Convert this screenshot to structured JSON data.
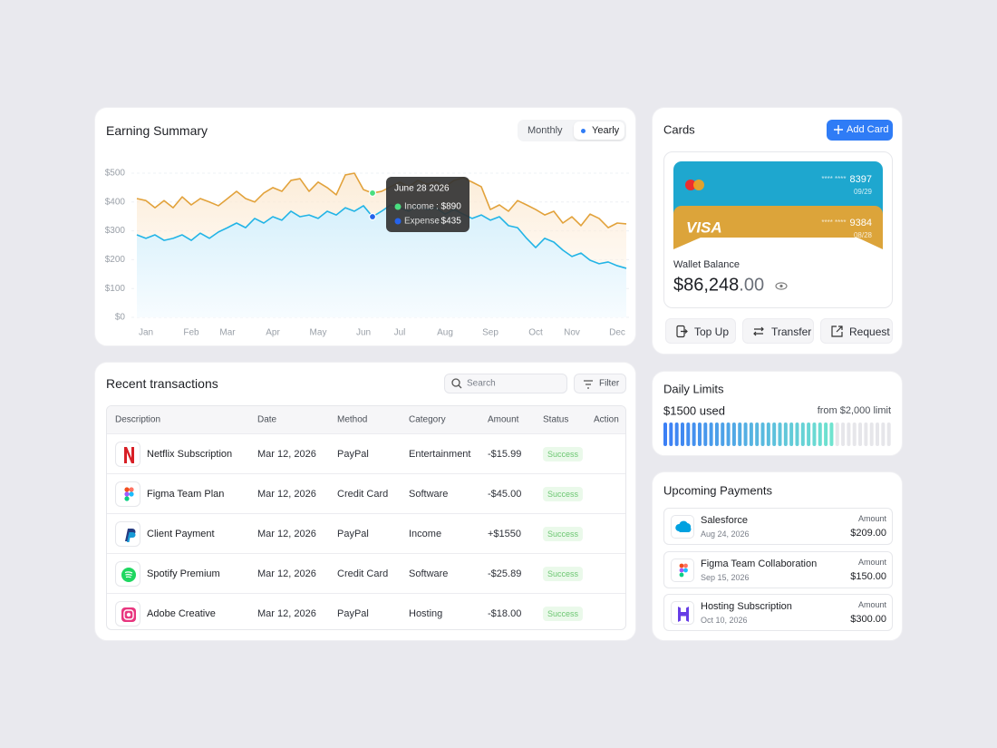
{
  "chart_data": {
    "type": "line",
    "title": "Earning Summary",
    "categories": [
      null,
      "Jan",
      null,
      null,
      null,
      null,
      "Feb",
      null,
      null,
      null,
      "Mar",
      null,
      null,
      null,
      null,
      "Apr",
      null,
      null,
      null,
      null,
      "May",
      null,
      null,
      null,
      null,
      "Jun",
      null,
      null,
      null,
      "Jul",
      null,
      null,
      null,
      null,
      "Aug",
      null,
      null,
      null,
      null,
      "Sep",
      null,
      null,
      null,
      null,
      "Oct",
      null,
      null,
      null,
      "Nov",
      null,
      null,
      null,
      null,
      "Dec",
      null
    ],
    "series": [
      {
        "name": "Income",
        "color": "#e2a23b",
        "values": [
          412,
          405,
          380,
          405,
          380,
          418,
          390,
          412,
          400,
          387,
          412,
          437,
          412,
          400,
          431,
          450,
          437,
          475,
          481,
          437,
          469,
          450,
          425,
          494,
          500,
          443,
          431,
          437,
          453,
          469,
          453,
          475,
          462,
          469,
          453,
          475,
          484,
          469,
          453,
          374,
          390,
          368,
          405,
          390,
          374,
          355,
          368,
          327,
          349,
          318,
          358,
          343,
          311,
          327,
          324
        ]
      },
      {
        "name": "Expense",
        "color": "#22b4e6",
        "values": [
          286,
          274,
          286,
          267,
          274,
          286,
          267,
          292,
          274,
          296,
          311,
          327,
          311,
          343,
          327,
          349,
          337,
          368,
          349,
          355,
          343,
          368,
          355,
          380,
          368,
          387,
          349,
          368,
          390,
          380,
          368,
          390,
          374,
          380,
          358,
          374,
          358,
          343,
          355,
          337,
          349,
          318,
          311,
          274,
          242,
          274,
          261,
          233,
          211,
          223,
          198,
          186,
          192,
          179,
          170
        ]
      }
    ],
    "ylim": [
      0,
      500
    ],
    "yticks": [
      {
        "value": 0,
        "label": "$0"
      },
      {
        "value": 100,
        "label": "$100"
      },
      {
        "value": 200,
        "label": "$200"
      },
      {
        "value": 300,
        "label": "$300"
      },
      {
        "value": 400,
        "label": "$400"
      },
      {
        "value": 500,
        "label": "$500"
      }
    ],
    "grid": true,
    "toggle": [
      "Monthly",
      "Yearly"
    ],
    "tooltip": {
      "date": "June 28 2026",
      "items": [
        {
          "value": ": $890",
          "color": "#4ade80"
        },
        {
          "value": ": $435",
          "color": "#2563eb"
        }
      ]
    }
  },
  "transactions": {
    "title": "Recent transactions",
    "search": "Search",
    "filter": "Filter",
    "columns": [
      "Description",
      "Date",
      "Method",
      "Category",
      "Amount",
      "Status",
      "Action"
    ],
    "rows": [
      [
        "Netflix Subscription",
        "Mar 12, 2026",
        "PayPal",
        "Entertainment",
        "-$15.99",
        "Success"
      ],
      [
        "Figma Team Plan",
        "Mar 12, 2026",
        "Credit Card",
        "Software",
        "-$45.00",
        "Success"
      ],
      [
        "Client Payment",
        "Mar 12, 2026",
        "PayPal",
        "Income",
        "+$1550",
        "Success"
      ],
      [
        "Spotify Premium",
        "Mar 12, 2026",
        "Credit Card",
        "Software",
        "-$25.89",
        "Success"
      ],
      [
        "Adobe Creative",
        "Mar 12, 2026",
        "PayPal",
        "Hosting",
        "-$18.00",
        "Success"
      ]
    ]
  },
  "cards": {
    "title": "Cards",
    "add": "Add Card",
    "items": [
      {
        "mask": "**** ****",
        "last4": "8397",
        "expiry": "09/29"
      },
      {
        "brand": "VISA",
        "mask": "**** ****",
        "last4": "9384",
        "expiry": "08/28"
      }
    ],
    "wallet_label": "Wallet Balance",
    "balance": "$86,248",
    "cents": ".00",
    "actions": [
      "Top Up",
      "Transfer",
      "Request"
    ]
  },
  "daily_limits": {
    "title": "Daily Limits",
    "used_text": "$1500 used",
    "limit_text": "from $2,000 limit",
    "used": 1500,
    "limit": 2000
  },
  "upcoming": {
    "title": "Upcoming Payments",
    "items": [
      {
        "name": "Salesforce",
        "date": "Aug 24, 2026",
        "amount_label": "Amount",
        "amount": "$209.00"
      },
      {
        "name": "Figma Team Collaboration",
        "date": "Sep 15, 2026",
        "amount_label": "Amount",
        "amount": "$150.00"
      },
      {
        "name": "Hosting Subscription",
        "date": "Oct 10, 2026",
        "amount_label": "Amount",
        "amount": "$300.00"
      }
    ]
  }
}
